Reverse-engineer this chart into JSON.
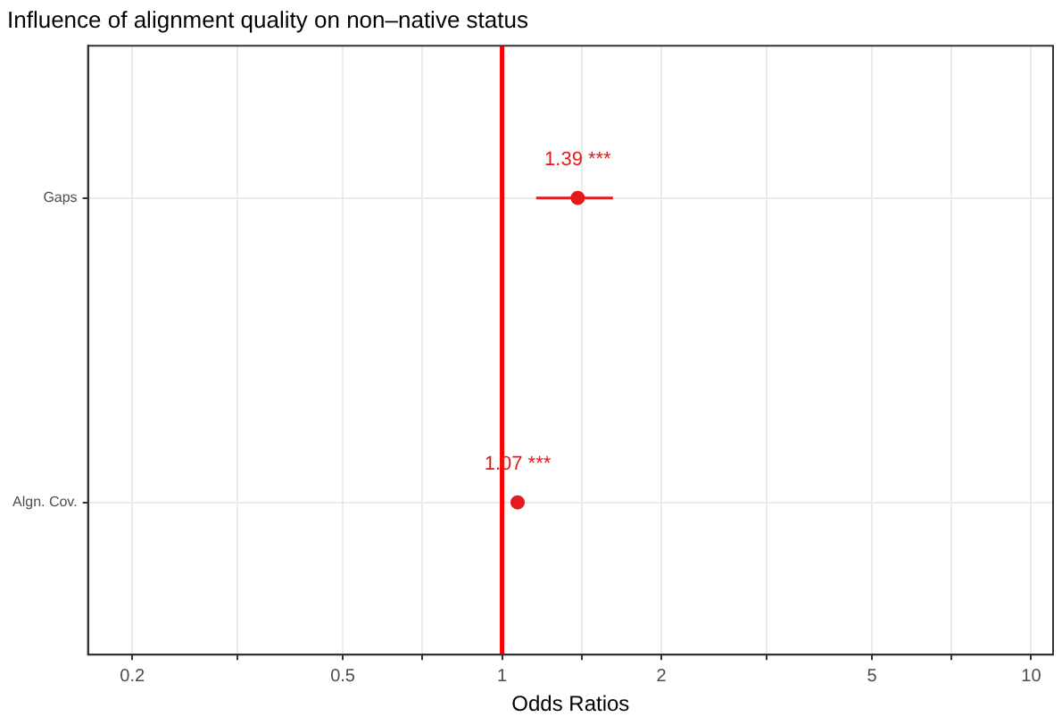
{
  "chart_data": {
    "type": "scatter",
    "orientation": "horizontal",
    "title": "Influence of alignment quality on non–native status",
    "xlabel": "Odds Ratios",
    "categories": [
      "Gaps",
      "Algn. Cov."
    ],
    "series": [
      {
        "color": "#e41a1c",
        "values": [
          1.39,
          1.07
        ],
        "errors": [
          [
            1.16,
            1.62
          ],
          [
            1.04,
            1.1
          ]
        ],
        "value_labels": [
          "1.39 ***",
          "1.07 ***"
        ]
      }
    ],
    "log": "x",
    "xlim": [
      0.165,
      11
    ],
    "xticks": [
      0.2,
      {
        "value": 0.316,
        "label": null
      },
      0.5,
      {
        "value": 0.707,
        "label": null
      },
      1,
      {
        "value": 1.414,
        "label": null
      },
      2,
      {
        "value": 3.16,
        "label": null
      },
      5,
      {
        "value": 7.07,
        "label": null
      },
      10
    ],
    "ref_lines": [
      {
        "axis": "x",
        "value": 1,
        "color": "#ff0000"
      }
    ],
    "grid": true,
    "legend": false,
    "marker": "circle"
  }
}
